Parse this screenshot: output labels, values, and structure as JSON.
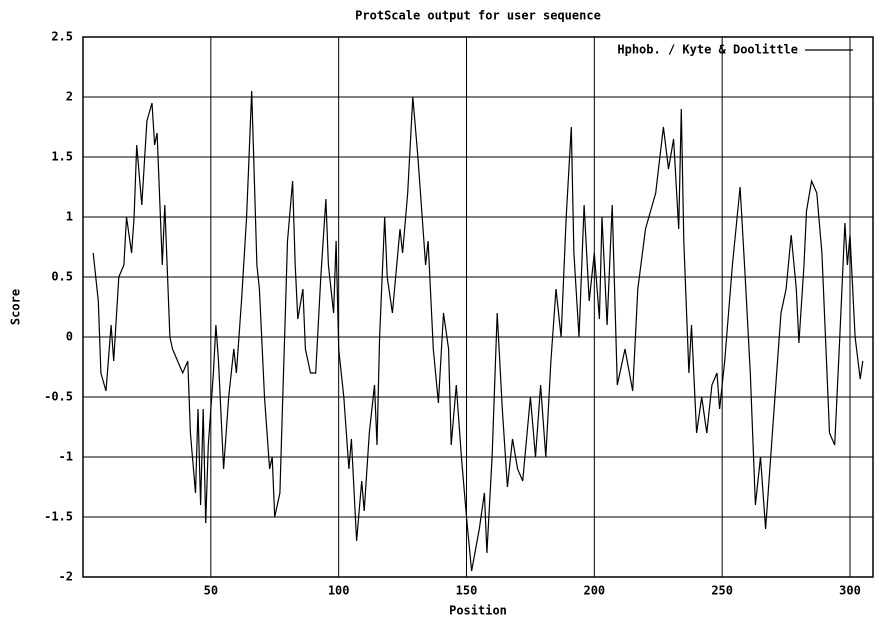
{
  "chart_data": {
    "type": "line",
    "title": "ProtScale output for user sequence",
    "xlabel": "Position",
    "ylabel": "Score",
    "xlim": [
      0,
      309
    ],
    "ylim": [
      -2,
      2.5
    ],
    "xticks": [
      50,
      100,
      150,
      200,
      250,
      300
    ],
    "yticks": [
      -2,
      -1.5,
      -1,
      -0.5,
      0,
      0.5,
      1,
      1.5,
      2,
      2.5
    ],
    "grid": true,
    "legend": "upper right",
    "x": [
      4,
      6,
      7,
      9,
      11,
      12,
      14,
      16,
      17,
      19,
      20,
      21,
      23,
      25,
      27,
      28,
      29,
      31,
      32,
      34,
      35,
      37,
      39,
      41,
      42,
      44,
      45,
      46,
      47,
      48,
      49,
      51,
      52,
      53,
      55,
      57,
      59,
      60,
      62,
      64,
      66,
      68,
      69,
      71,
      73,
      74,
      75,
      77,
      78,
      79,
      80,
      82,
      83,
      84,
      86,
      87,
      89,
      91,
      93,
      95,
      96,
      98,
      99,
      100,
      102,
      104,
      105,
      107,
      109,
      110,
      112,
      114,
      115,
      116,
      118,
      119,
      121,
      124,
      125,
      127,
      129,
      131,
      134,
      135,
      137,
      139,
      141,
      143,
      144,
      146,
      148,
      150,
      152,
      155,
      157,
      158,
      160,
      162,
      164,
      166,
      168,
      170,
      172,
      175,
      177,
      179,
      181,
      183,
      185,
      187,
      189,
      191,
      192,
      194,
      196,
      198,
      200,
      202,
      203,
      205,
      207,
      209,
      212,
      215,
      217,
      220,
      224,
      227,
      229,
      231,
      233,
      234,
      235,
      237,
      238,
      240,
      242,
      244,
      246,
      248,
      249,
      251,
      254,
      257,
      259,
      261,
      263,
      265,
      267,
      269,
      271,
      273,
      275,
      277,
      279,
      280,
      282,
      283,
      285,
      287,
      289,
      291,
      292,
      294,
      296,
      298,
      299,
      300,
      302,
      304,
      305
    ],
    "series": [
      {
        "name": "Hphob. / Kyte & Doolittle",
        "color": "#000000",
        "values": [
          0.7,
          0.3,
          -0.3,
          -0.45,
          0.1,
          -0.2,
          0.5,
          0.6,
          1.0,
          0.7,
          1.0,
          1.6,
          1.1,
          1.8,
          1.95,
          1.6,
          1.7,
          0.6,
          1.1,
          0.0,
          -0.1,
          -0.2,
          -0.3,
          -0.2,
          -0.8,
          -1.3,
          -0.6,
          -1.4,
          -0.6,
          -1.55,
          -0.9,
          -0.3,
          0.1,
          -0.2,
          -1.1,
          -0.5,
          -0.1,
          -0.3,
          0.3,
          1.0,
          2.05,
          0.6,
          0.4,
          -0.5,
          -1.1,
          -1.0,
          -1.5,
          -1.3,
          -0.6,
          0.1,
          0.8,
          1.3,
          0.6,
          0.15,
          0.4,
          -0.1,
          -0.3,
          -0.3,
          0.5,
          1.15,
          0.6,
          0.2,
          0.8,
          -0.1,
          -0.5,
          -1.1,
          -0.85,
          -1.7,
          -1.2,
          -1.45,
          -0.8,
          -0.4,
          -0.9,
          0.0,
          1.0,
          0.5,
          0.2,
          0.9,
          0.7,
          1.2,
          2.0,
          1.5,
          0.6,
          0.8,
          -0.1,
          -0.55,
          0.2,
          -0.1,
          -0.9,
          -0.4,
          -1.0,
          -1.5,
          -1.95,
          -1.6,
          -1.3,
          -1.8,
          -1.0,
          0.2,
          -0.6,
          -1.25,
          -0.85,
          -1.1,
          -1.2,
          -0.5,
          -1.0,
          -0.4,
          -1.0,
          -0.2,
          0.4,
          0.0,
          1.0,
          1.75,
          0.7,
          0.0,
          1.1,
          0.3,
          0.7,
          0.15,
          1.0,
          0.1,
          1.1,
          -0.4,
          -0.1,
          -0.45,
          0.4,
          0.9,
          1.2,
          1.75,
          1.4,
          1.65,
          0.9,
          1.9,
          0.8,
          -0.3,
          0.1,
          -0.8,
          -0.5,
          -0.8,
          -0.4,
          -0.3,
          -0.6,
          -0.2,
          0.6,
          1.25,
          0.5,
          -0.3,
          -1.4,
          -1.0,
          -1.6,
          -1.0,
          -0.4,
          0.2,
          0.4,
          0.85,
          0.4,
          -0.05,
          0.6,
          1.05,
          1.3,
          1.2,
          0.7,
          -0.3,
          -0.8,
          -0.9,
          0.0,
          0.95,
          0.6,
          0.85,
          0.0,
          -0.35,
          -0.2
        ]
      }
    ]
  }
}
